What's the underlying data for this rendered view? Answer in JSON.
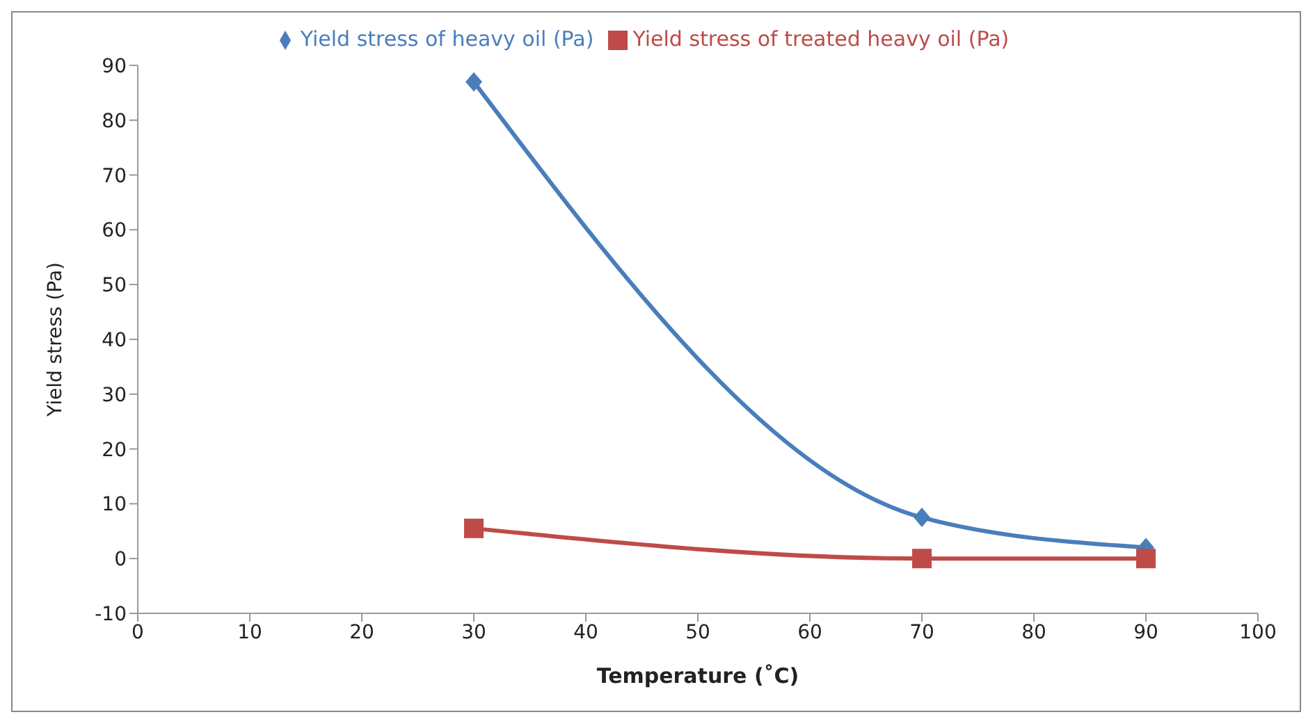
{
  "chart_data": {
    "type": "line",
    "xlabel": "Temperature (˚C)",
    "ylabel": "Yield stress (Pa)",
    "x": [
      30,
      70,
      90
    ],
    "series": [
      {
        "name": "Yield stress of heavy oil (Pa)",
        "color": "#4a7ebb",
        "values": [
          87,
          7.5,
          2
        ],
        "marker": "diamond"
      },
      {
        "name": "Yield stress of treated heavy oil (Pa)",
        "color": "#be4b48",
        "values": [
          5.5,
          0,
          0
        ],
        "marker": "square"
      }
    ],
    "xlim": [
      0,
      100
    ],
    "xticks": [
      0,
      10,
      20,
      30,
      40,
      50,
      60,
      70,
      80,
      90,
      100
    ],
    "ylim": [
      -10,
      90
    ],
    "yticks": [
      -10,
      0,
      10,
      20,
      30,
      40,
      50,
      60,
      70,
      80,
      90
    ],
    "grid": false,
    "legend": "top",
    "line_style": "solid"
  }
}
